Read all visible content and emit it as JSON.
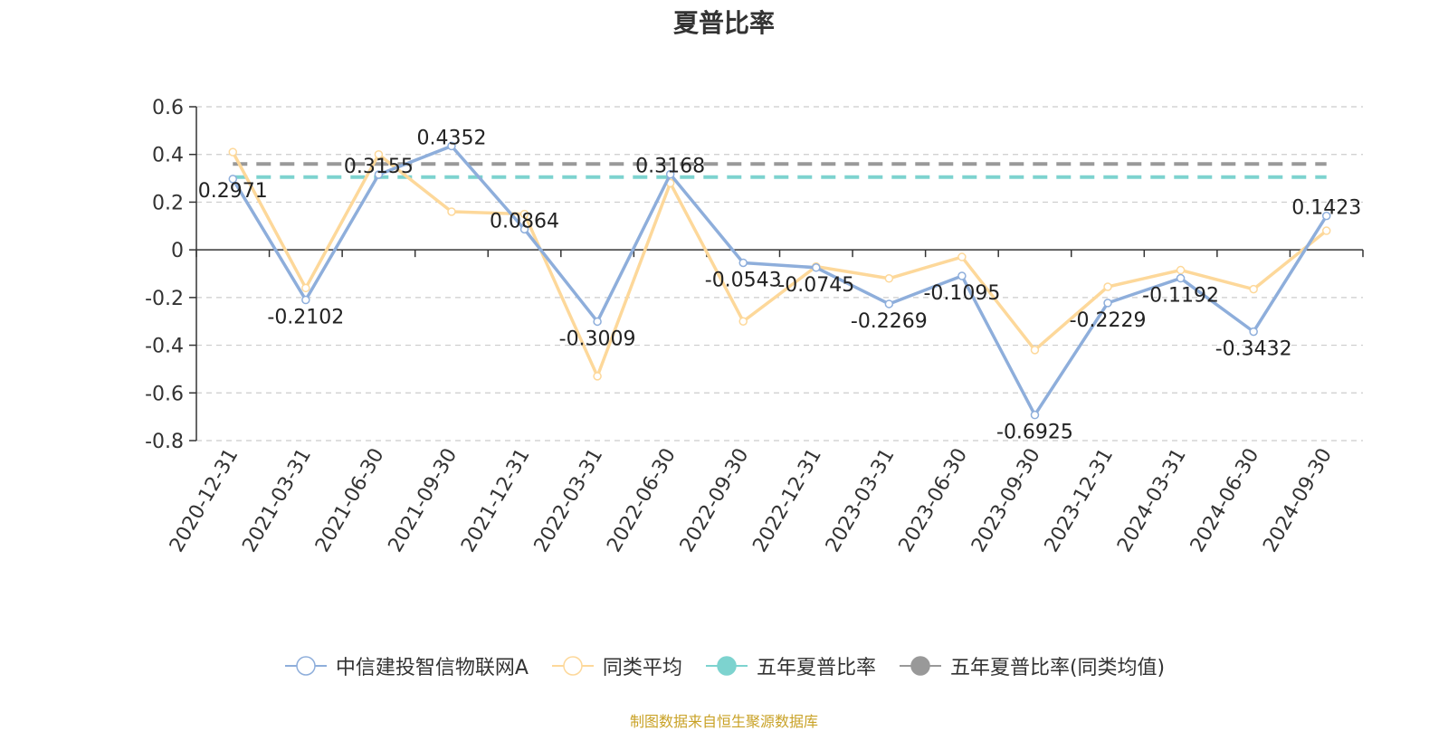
{
  "page": {
    "source": "制图数据来自恒生聚源数据库"
  },
  "chart_data": {
    "type": "line",
    "title": "夏普比率",
    "xlabel": "",
    "ylabel": "",
    "ylim": [
      -0.8,
      0.6
    ],
    "yticks": [
      0.6,
      0.4,
      0.2,
      0,
      -0.2,
      -0.4,
      -0.6,
      -0.8
    ],
    "ytick_labels": [
      "0.6",
      "0.4",
      "0.2",
      "0",
      "-0.2",
      "-0.4",
      "-0.6",
      "-0.8"
    ],
    "grid": true,
    "legend_position": "bottom",
    "categories": [
      "2020-12-31",
      "2021-03-31",
      "2021-06-30",
      "2021-09-30",
      "2021-12-31",
      "2022-03-31",
      "2022-06-30",
      "2022-09-30",
      "2022-12-31",
      "2023-03-31",
      "2023-06-30",
      "2023-09-30",
      "2023-12-31",
      "2024-03-31",
      "2024-06-30",
      "2024-09-30"
    ],
    "series": [
      {
        "name": "中信建投智信物联网A",
        "color": "#8eaedb",
        "style": "line",
        "show_labels": true,
        "values": [
          0.2971,
          -0.2102,
          0.3155,
          0.4352,
          0.0864,
          -0.3009,
          0.3168,
          -0.0543,
          -0.0745,
          -0.2269,
          -0.1095,
          -0.6925,
          -0.2229,
          -0.1192,
          -0.3432,
          0.1423
        ],
        "labels": [
          "0.2971",
          "-0.2102",
          "0.3155",
          "0.4352",
          "0.0864",
          "-0.3009",
          "0.3168",
          "-0.0543",
          "-0.0745",
          "-0.2269",
          "-0.1095",
          "-0.6925",
          "-0.2229",
          "-0.1192",
          "-0.3432",
          "0.1423"
        ]
      },
      {
        "name": "同类平均",
        "color": "#fdd89a",
        "style": "line",
        "show_labels": false,
        "values": [
          0.41,
          -0.16,
          0.4,
          0.16,
          0.15,
          -0.53,
          0.28,
          -0.3,
          -0.07,
          -0.12,
          -0.03,
          -0.42,
          -0.155,
          -0.085,
          -0.165,
          0.08
        ]
      },
      {
        "name": "五年夏普比率",
        "color": "#7dd3cf",
        "style": "dashed",
        "show_labels": false,
        "values": [
          0.305,
          0.305,
          0.305,
          0.305,
          0.305,
          0.305,
          0.305,
          0.305,
          0.305,
          0.305,
          0.305,
          0.305,
          0.305,
          0.305,
          0.305,
          0.305
        ]
      },
      {
        "name": "五年夏普比率(同类均值)",
        "color": "#999999",
        "style": "dashed",
        "show_labels": false,
        "values": [
          0.36,
          0.36,
          0.36,
          0.36,
          0.36,
          0.36,
          0.36,
          0.36,
          0.36,
          0.36,
          0.36,
          0.36,
          0.36,
          0.36,
          0.36,
          0.36
        ]
      }
    ]
  }
}
